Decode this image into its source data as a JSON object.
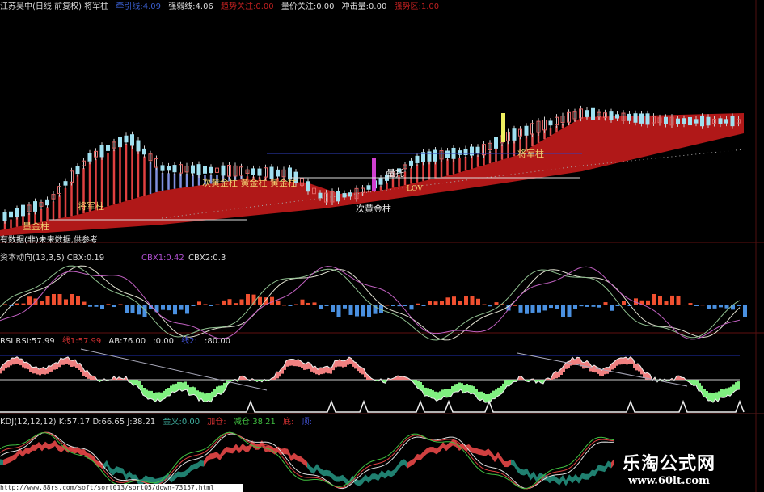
{
  "title_bar": {
    "stock": "江苏吴中(日线 前复权) 将军柱",
    "items": [
      {
        "text": "牵引线:4.09",
        "color": "#3a5fd0"
      },
      {
        "text": "强弱线:4.06",
        "color": "#dddddd"
      },
      {
        "text": "趋势关注:0.00",
        "color": "#c02020"
      },
      {
        "text": "量价关注:0.00",
        "color": "#dddddd"
      },
      {
        "text": "冲击量:0.00",
        "color": "#dddddd"
      },
      {
        "text": "强势区:1.00",
        "color": "#c02020"
      }
    ]
  },
  "main_labels": {
    "liangjin": "量金柱",
    "jiangjun_left": "将军柱",
    "huangjin_group": "次黄金柱 黄金柱 黄金柱",
    "ci_huangjin": "次黄金柱",
    "liangtuo": "量托",
    "lov": "LOV",
    "jiangjun_right": "将军柱",
    "note": "有数据(非)未来数据,供参考"
  },
  "panel_cbx": {
    "title": "资本动向(13,3,5) CBX:0.19",
    "cbx1": "CBX1:0.42",
    "cbx2": "CBX2:0.3",
    "colors": {
      "up": "#f05030",
      "down": "#4a90e0"
    }
  },
  "panel_rsi": {
    "title": "RSI RSI:57.99",
    "line1": "线1:57.99",
    "ab": "AB:76.00",
    "zero": ":0.00",
    "line2": "线2:",
    "eighty": ":80.00",
    "colors": {
      "high": "#f08080",
      "low": "#80f080"
    }
  },
  "panel_kdj": {
    "title": "KDJ(12,12,12) K:57.17 D:66.65 J:38.21",
    "golden_cross": "金叉:0.00",
    "add": "加仓:",
    "reduce": "减仓:38.21",
    "bottom": "底:",
    "top": "顶:"
  },
  "url": "http://www.88rs.com/soft/sort013/sort05/down-73157.html",
  "watermark": {
    "name": "乐淘公式网",
    "site": "www.60lt.com"
  }
}
